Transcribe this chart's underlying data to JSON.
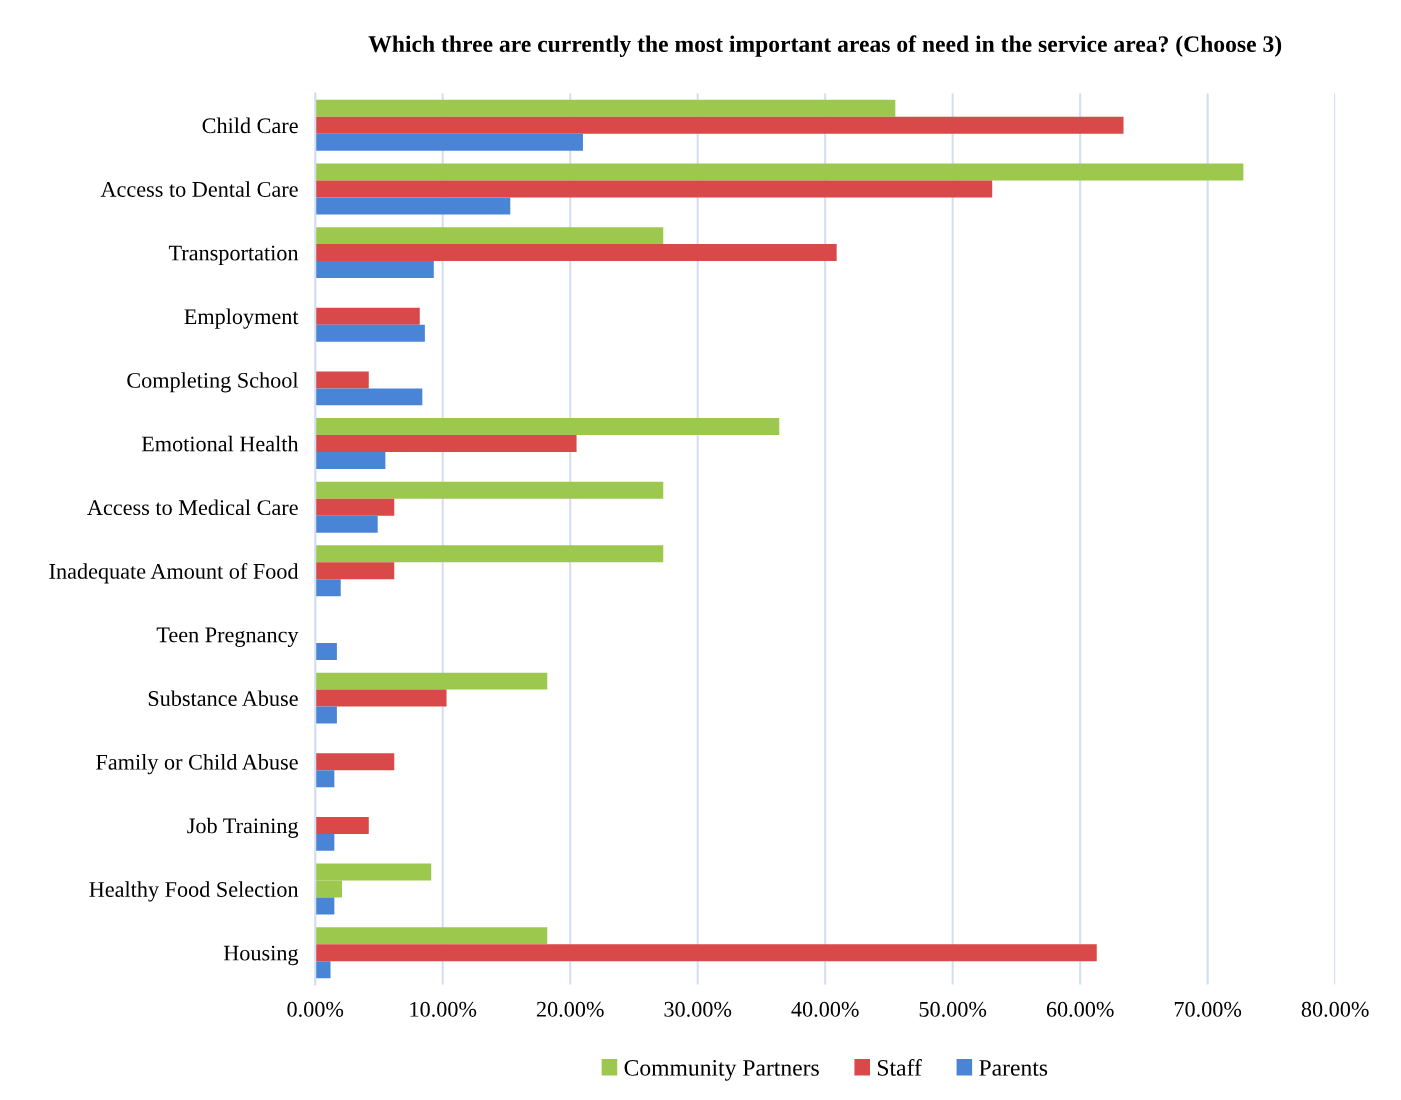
{
  "chart_data": {
    "type": "bar",
    "orientation": "horizontal",
    "title": "Which three are currently the most important areas of need in the service area? (Choose 3)",
    "categories": [
      "Child Care",
      "Access to Dental Care",
      "Transportation",
      "Employment",
      "Completing School",
      "Emotional Health",
      "Access to Medical Care",
      "Inadequate Amount of Food",
      "Teen Pregnancy",
      "Substance Abuse",
      "Family or Child Abuse",
      "Job Training",
      "Healthy Food Selection",
      "Housing"
    ],
    "series": [
      {
        "name": "Community Partners",
        "color": "#9cc84e",
        "values": [
          45.5,
          72.8,
          27.3,
          null,
          null,
          36.4,
          27.3,
          27.3,
          null,
          18.2,
          null,
          null,
          9.1,
          18.2
        ]
      },
      {
        "name": "Staff",
        "color": "#d9494a",
        "colors": [
          "#d9494a",
          "#d9494a",
          "#d9494a",
          "#d9494a",
          "#d9494a",
          "#d9494a",
          "#d9494a",
          "#d9494a",
          "#d9494a",
          "#d9494a",
          "#d9494a",
          "#d9494a",
          "#9cc84e",
          "#d9494a"
        ],
        "values": [
          63.4,
          53.1,
          40.9,
          8.2,
          4.2,
          20.5,
          6.2,
          6.2,
          null,
          10.3,
          6.2,
          4.2,
          2.1,
          61.3
        ]
      },
      {
        "name": "Parents",
        "color": "#4a84d6",
        "values": [
          21.0,
          15.3,
          9.3,
          8.6,
          8.4,
          5.5,
          4.9,
          2.0,
          1.7,
          1.7,
          1.5,
          1.5,
          1.5,
          1.2
        ]
      }
    ],
    "xlim": [
      0,
      80
    ],
    "xticks": [
      {
        "value": 0,
        "label": "0.00%"
      },
      {
        "value": 10,
        "label": "10.00%"
      },
      {
        "value": 20,
        "label": "20.00%"
      },
      {
        "value": 30,
        "label": "30.00%"
      },
      {
        "value": 40,
        "label": "40.00%"
      },
      {
        "value": 50,
        "label": "50.00%"
      },
      {
        "value": 60,
        "label": "60.00%"
      },
      {
        "value": 70,
        "label": "70.00%"
      },
      {
        "value": 80,
        "label": "80.00%"
      }
    ],
    "grid": "x",
    "legend": "bottom"
  }
}
